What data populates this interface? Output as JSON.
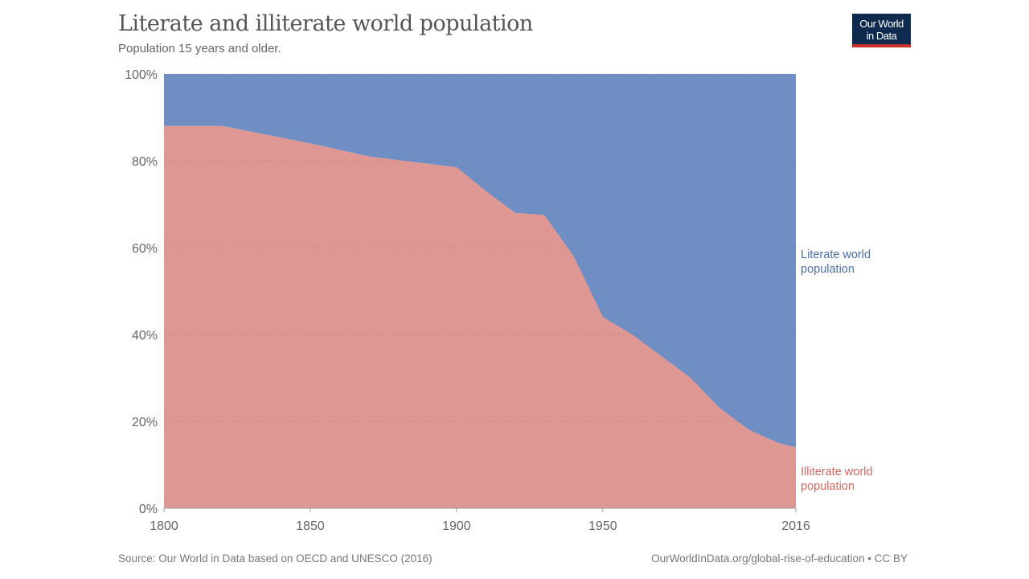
{
  "chart_data": {
    "type": "area",
    "stacked": true,
    "title": "Literate and illiterate world population",
    "subtitle": "Population 15 years and older.",
    "x": [
      1800,
      1820,
      1850,
      1870,
      1900,
      1910,
      1920,
      1930,
      1940,
      1950,
      1960,
      1970,
      1980,
      1990,
      2000,
      2010,
      2016
    ],
    "series": [
      {
        "name": "Illiterate world population",
        "color": "#df9793",
        "label_color": "#d9675f",
        "values": [
          88,
          88,
          84,
          81,
          78.5,
          73,
          68,
          67.5,
          58,
          44,
          40,
          35,
          30,
          23,
          18,
          15,
          14
        ]
      },
      {
        "name": "Literate world population",
        "color": "#6f8fc4",
        "label_color": "#4a6fae",
        "values": [
          12,
          12,
          16,
          19,
          21.5,
          27,
          32,
          32.5,
          42,
          56,
          60,
          65,
          70,
          77,
          82,
          85,
          86
        ]
      }
    ],
    "xlim": [
      1800,
      2016
    ],
    "ylim": [
      0,
      100
    ],
    "x_ticks": [
      "1800",
      "1850",
      "1900",
      "1950",
      "2016"
    ],
    "x_tick_values": [
      1800,
      1850,
      1900,
      1950,
      2016
    ],
    "y_ticks": [
      "0%",
      "20%",
      "40%",
      "60%",
      "80%",
      "100%"
    ],
    "y_tick_values": [
      0,
      20,
      40,
      60,
      80,
      100
    ],
    "grid": true,
    "legend": "inline-right",
    "label_lines": {
      "literate": [
        "Literate world",
        "population"
      ],
      "illiterate": [
        "Illiterate world",
        "population"
      ]
    }
  },
  "logo": {
    "line1": "Our World",
    "line2": "in Data"
  },
  "footer": {
    "source": "Source: Our World in Data based on OECD and UNESCO (2016)",
    "link": "OurWorldInData.org/global-rise-of-education • CC BY"
  }
}
